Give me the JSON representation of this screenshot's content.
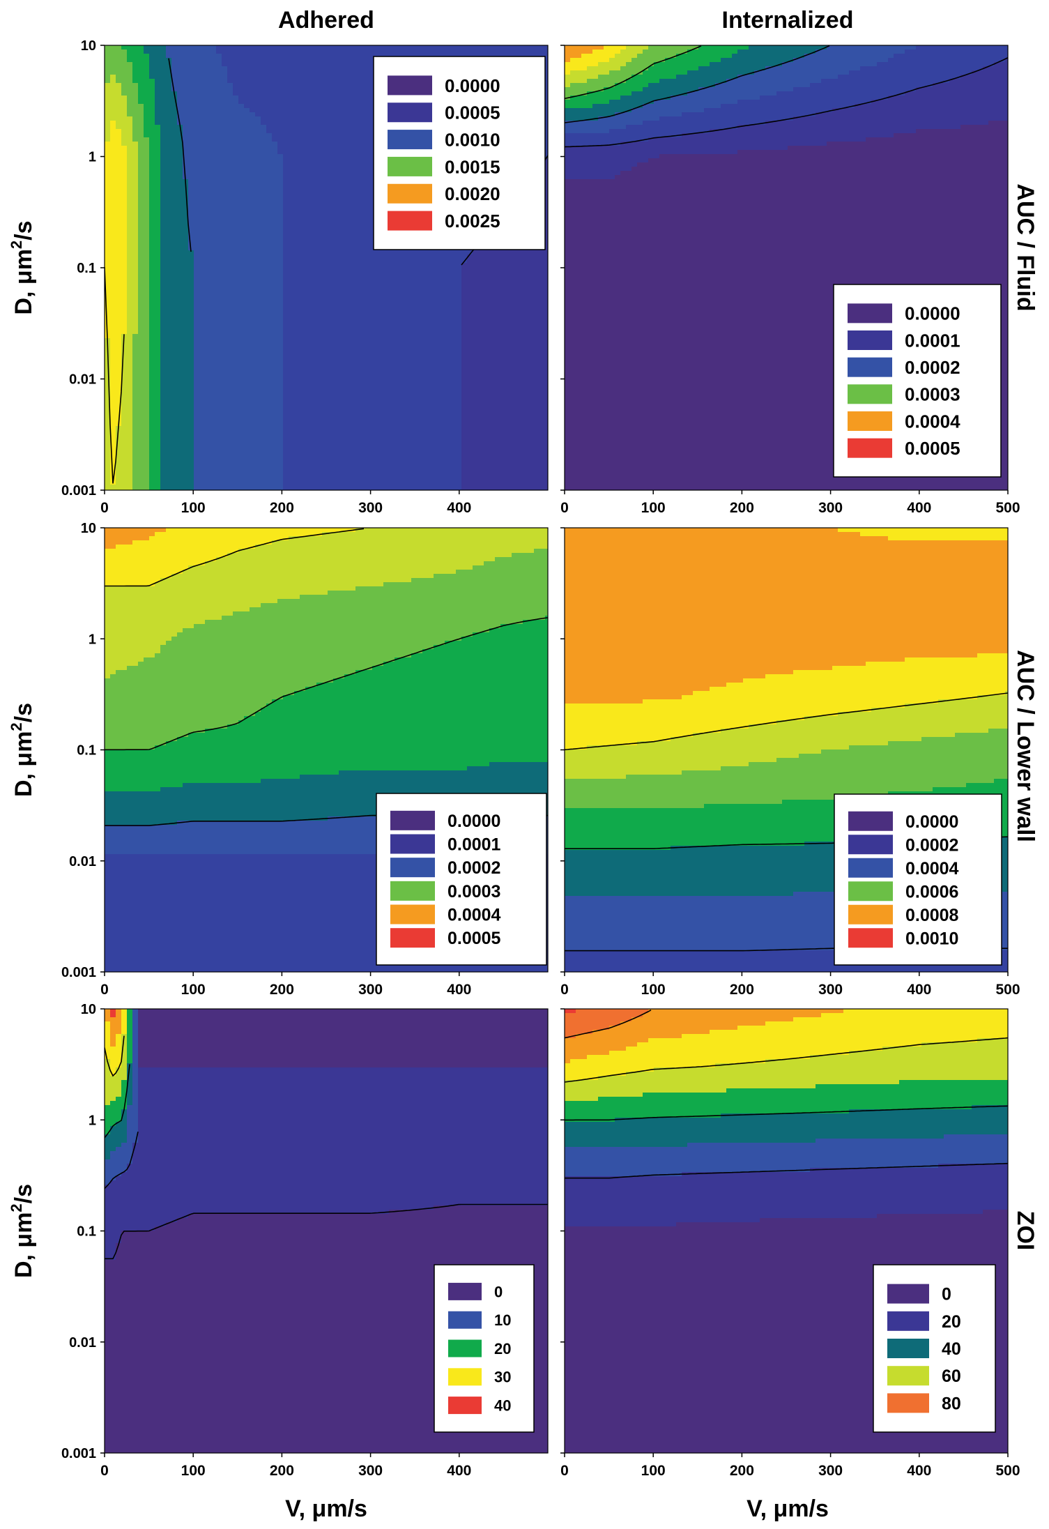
{
  "column_titles": [
    "Adhered",
    "Internalized"
  ],
  "row_titles": [
    "AUC / Fluid",
    "AUC / Lower wall",
    "ZOI"
  ],
  "y_axis_label": {
    "prefix": "D, ",
    "unit_base": "μm",
    "superscript": "2",
    "suffix": "/s"
  },
  "x_axis_label": "V, μm/s",
  "colors": {
    "purple": "#4b2f7f",
    "indigo": "#3b3795",
    "blue": "#3452a6",
    "teal": "#0e6b78",
    "green": "#10aa4b",
    "lightgreen": "#6bbf46",
    "yellowgreen": "#c6dc2e",
    "yellow": "#f9e81b",
    "orange": "#f59b20",
    "darkorange": "#f07030",
    "red": "#ea3b34"
  },
  "chart_data": [
    {
      "type": "heatmap",
      "panel": "Adhered - AUC / Fluid",
      "x": [
        0,
        10,
        20,
        30,
        40,
        50,
        60,
        80,
        100,
        150,
        200,
        300,
        400,
        500
      ],
      "y": [
        0.001,
        0.01,
        0.1,
        1,
        10
      ],
      "xlim": [
        0,
        500
      ],
      "ylim": [
        0.001,
        10
      ],
      "yscale": "log",
      "x_ticks": [
        0,
        100,
        200,
        300,
        400
      ],
      "y_ticks": [
        "0.001",
        "0.01",
        "0.1",
        "1",
        "10"
      ],
      "z": [
        [
          0.0019,
          0.002,
          0.0019,
          0.0018,
          0.0016,
          0.0015,
          0.0013,
          0.0011,
          0.001,
          0.0008,
          0.00075,
          0.0007,
          0.0005,
          0.0004
        ],
        [
          0.0019,
          0.0021,
          0.002,
          0.0018,
          0.0016,
          0.0015,
          0.0013,
          0.0011,
          0.001,
          0.0008,
          0.00075,
          0.0007,
          0.0005,
          0.0004
        ],
        [
          0.002,
          0.0022,
          0.0021,
          0.0019,
          0.0017,
          0.0015,
          0.0013,
          0.0011,
          0.001,
          0.0008,
          0.00075,
          0.0007,
          0.0005,
          0.0004
        ],
        [
          0.002,
          0.0022,
          0.0021,
          0.0019,
          0.0017,
          0.0015,
          0.0013,
          0.0011,
          0.0009,
          0.0008,
          0.00075,
          0.0007,
          0.0006,
          0.0005
        ],
        [
          0.0016,
          0.0016,
          0.0015,
          0.0014,
          0.0013,
          0.0012,
          0.0011,
          0.0009,
          0.0008,
          0.0007,
          0.0007,
          0.0007,
          0.0006,
          0.0005
        ]
      ],
      "levels": [
        0.0,
        0.00025,
        0.0005,
        0.00075,
        0.001,
        0.00125,
        0.0015,
        0.00175,
        0.002,
        0.00225,
        0.0025
      ],
      "level_colors": [
        "#4b2f7f",
        "#3b3795",
        "#3542a0",
        "#3452a6",
        "#0e6b78",
        "#10aa4b",
        "#6bbf46",
        "#c6dc2e",
        "#f9e81b",
        "#f59b20",
        "#ea3b34"
      ],
      "contour_lines": [
        0.0005,
        0.001,
        0.002
      ],
      "legend": {
        "entries": [
          "0.0000",
          "0.0005",
          "0.0010",
          "0.0015",
          "0.0020",
          "0.0025"
        ],
        "colors": [
          "#4b2f7f",
          "#3b3795",
          "#3452a6",
          "#6bbf46",
          "#f59b20",
          "#ea3b34"
        ],
        "position": "top-right"
      }
    },
    {
      "type": "heatmap",
      "panel": "Internalized - AUC / Fluid",
      "x": [
        0,
        50,
        100,
        200,
        300,
        400,
        500
      ],
      "y": [
        0.001,
        0.01,
        0.1,
        1,
        10
      ],
      "xlim": [
        0,
        500
      ],
      "ylim": [
        0.001,
        10
      ],
      "yscale": "log",
      "x_ticks": [
        0,
        100,
        200,
        300,
        400,
        500
      ],
      "y_ticks": [
        "0.001",
        "0.01",
        "0.1",
        "1",
        "10"
      ],
      "z": [
        [
          1e-05,
          1e-05,
          1e-05,
          1e-05,
          1e-05,
          1e-05,
          1e-05
        ],
        [
          1e-05,
          1e-05,
          1e-05,
          1e-05,
          1e-05,
          1e-05,
          1e-05
        ],
        [
          1e-05,
          1e-05,
          1e-05,
          1e-05,
          1e-05,
          1e-05,
          1e-05
        ],
        [
          6e-05,
          6e-05,
          5e-05,
          4e-05,
          3e-05,
          2e-05,
          2e-05
        ],
        [
          0.00052,
          0.00045,
          0.00035,
          0.00026,
          0.0002,
          0.00015,
          0.00011
        ]
      ],
      "levels": [
        0.0,
        5e-05,
        0.0001,
        0.00015,
        0.0002,
        0.00025,
        0.0003,
        0.00035,
        0.0004,
        0.00045,
        0.0005
      ],
      "level_colors": [
        "#4b2f7f",
        "#3b3795",
        "#3542a0",
        "#3452a6",
        "#0e6b78",
        "#10aa4b",
        "#6bbf46",
        "#c6dc2e",
        "#f9e81b",
        "#f59b20",
        "#ea3b34"
      ],
      "contour_lines": [
        0.0001,
        0.0002,
        0.0003
      ],
      "legend": {
        "entries": [
          "0.0000",
          "0.0001",
          "0.0002",
          "0.0003",
          "0.0004",
          "0.0005"
        ],
        "colors": [
          "#4b2f7f",
          "#3b3795",
          "#3452a6",
          "#6bbf46",
          "#f59b20",
          "#ea3b34"
        ],
        "position": "bottom-right"
      }
    },
    {
      "type": "heatmap",
      "panel": "Adhered - AUC / Lower wall",
      "x": [
        0,
        50,
        100,
        150,
        200,
        300,
        400,
        450,
        500
      ],
      "y": [
        0.001,
        0.003,
        0.01,
        0.03,
        0.1,
        0.3,
        1,
        3,
        10
      ],
      "xlim": [
        0,
        500
      ],
      "ylim": [
        0.001,
        10
      ],
      "yscale": "log",
      "x_ticks": [
        0,
        100,
        200,
        300,
        400
      ],
      "y_ticks": [
        "0.001",
        "0.01",
        "0.1",
        "1",
        "10"
      ],
      "z": [
        [
          0.00011,
          0.00011,
          0.00011,
          0.00011,
          0.00011,
          0.00011,
          0.00011,
          0.00011,
          0.00011
        ],
        [
          0.00012,
          0.00012,
          0.00012,
          0.00012,
          0.00012,
          0.00012,
          0.00012,
          0.00012,
          0.00012
        ],
        [
          0.00014,
          0.00014,
          0.00014,
          0.00014,
          0.00014,
          0.00014,
          0.00014,
          0.00014,
          0.00014
        ],
        [
          0.00023,
          0.00023,
          0.00022,
          0.00022,
          0.00022,
          0.00021,
          0.00021,
          0.00021,
          0.00021
        ],
        [
          0.0003,
          0.0003,
          0.00029,
          0.00029,
          0.00028,
          0.00027,
          0.00027,
          0.00026,
          0.00026
        ],
        [
          0.00034,
          0.00033,
          0.00032,
          0.00031,
          0.0003,
          0.00029,
          0.00028,
          0.00027,
          0.00027
        ],
        [
          0.00037,
          0.00036,
          0.00034,
          0.00033,
          0.00032,
          0.00031,
          0.0003,
          0.00029,
          0.00028
        ],
        [
          0.0004,
          0.0004,
          0.00038,
          0.00037,
          0.00036,
          0.00035,
          0.00034,
          0.00033,
          0.00033
        ],
        [
          0.00048,
          0.00046,
          0.00044,
          0.00042,
          0.00041,
          0.0004,
          0.00038,
          0.00037,
          0.00036
        ]
      ],
      "levels": [
        0.0,
        5e-05,
        0.0001,
        0.00015,
        0.0002,
        0.00025,
        0.0003,
        0.00035,
        0.0004,
        0.00045,
        0.0005
      ],
      "level_colors": [
        "#4b2f7f",
        "#3b3795",
        "#3542a0",
        "#3452a6",
        "#0e6b78",
        "#10aa4b",
        "#6bbf46",
        "#c6dc2e",
        "#f9e81b",
        "#f59b20",
        "#ea3b34"
      ],
      "contour_lines": [
        0.0002,
        0.0003,
        0.0004
      ],
      "legend": {
        "entries": [
          "0.0000",
          "0.0001",
          "0.0002",
          "0.0003",
          "0.0004",
          "0.0005"
        ],
        "colors": [
          "#4b2f7f",
          "#3b3795",
          "#3452a6",
          "#6bbf46",
          "#f59b20",
          "#ea3b34"
        ],
        "position": "bottom-right"
      }
    },
    {
      "type": "heatmap",
      "panel": "Internalized - AUC / Lower wall",
      "x": [
        0,
        100,
        200,
        300,
        400,
        500
      ],
      "y": [
        0.001,
        0.003,
        0.01,
        0.03,
        0.1,
        0.3,
        1,
        3,
        10
      ],
      "xlim": [
        0,
        500
      ],
      "ylim": [
        0.001,
        10
      ],
      "yscale": "log",
      "x_ticks": [
        0,
        100,
        200,
        300,
        400,
        500
      ],
      "y_ticks": [
        "0.001",
        "0.01",
        "0.1",
        "1",
        "10"
      ],
      "z": [
        [
          0.00026,
          0.00026,
          0.00026,
          0.00026,
          0.00026,
          0.00026
        ],
        [
          0.00036,
          0.00036,
          0.00036,
          0.00035,
          0.00035,
          0.00035
        ],
        [
          0.00047,
          0.00047,
          0.00046,
          0.00046,
          0.00045,
          0.00045
        ],
        [
          0.0006,
          0.0006,
          0.00059,
          0.00058,
          0.00057,
          0.00056
        ],
        [
          0.0008,
          0.00078,
          0.00074,
          0.0007,
          0.00067,
          0.00064
        ],
        [
          0.00092,
          0.00091,
          0.00088,
          0.00085,
          0.00082,
          0.00079
        ],
        [
          0.00096,
          0.00096,
          0.00095,
          0.00095,
          0.00094,
          0.00094
        ],
        [
          0.00093,
          0.00093,
          0.00093,
          0.00093,
          0.00093,
          0.00093
        ],
        [
          0.0009,
          0.0009,
          0.0009,
          0.0009,
          0.00089,
          0.00089
        ]
      ],
      "levels": [
        0.0,
        0.0001,
        0.0002,
        0.0003,
        0.0004,
        0.0005,
        0.0006,
        0.0007,
        0.0008,
        0.0009,
        0.001
      ],
      "level_colors": [
        "#4b2f7f",
        "#3b3795",
        "#3542a0",
        "#3452a6",
        "#0e6b78",
        "#10aa4b",
        "#6bbf46",
        "#c6dc2e",
        "#f9e81b",
        "#f59b20",
        "#ea3b34"
      ],
      "contour_lines": [
        0.0003,
        0.0005,
        0.0008
      ],
      "legend": {
        "entries": [
          "0.0000",
          "0.0002",
          "0.0004",
          "0.0006",
          "0.0008",
          "0.0010"
        ],
        "colors": [
          "#4b2f7f",
          "#3b3795",
          "#3452a6",
          "#6bbf46",
          "#f59b20",
          "#ea3b34"
        ],
        "position": "bottom-right"
      }
    },
    {
      "type": "heatmap",
      "panel": "Adhered - ZOI",
      "x": [
        0,
        10,
        20,
        30,
        40,
        50,
        100,
        200,
        300,
        400,
        500
      ],
      "y": [
        0.001,
        0.01,
        0.1,
        0.3,
        1,
        3,
        10
      ],
      "xlim": [
        0,
        500
      ],
      "ylim": [
        0.001,
        10
      ],
      "yscale": "log",
      "x_ticks": [
        0,
        100,
        200,
        300,
        400
      ],
      "y_ticks": [
        "0.001",
        "0.01",
        "0.1",
        "1",
        "10"
      ],
      "z": [
        [
          1,
          1,
          1,
          1,
          1,
          1,
          1,
          1,
          1,
          1,
          1
        ],
        [
          2,
          2,
          2,
          2,
          2,
          2,
          2,
          2,
          2,
          2,
          2
        ],
        [
          6,
          6,
          5,
          5,
          5,
          5,
          4,
          4,
          4,
          4,
          4
        ],
        [
          11,
          10,
          9,
          9,
          8,
          8,
          7,
          7,
          7,
          6,
          6
        ],
        [
          24,
          21,
          20,
          12,
          10,
          9,
          8,
          8,
          7,
          7,
          7
        ],
        [
          28,
          32,
          29,
          18,
          5,
          5,
          5,
          5,
          5,
          5,
          5
        ],
        [
          34,
          42,
          36,
          20,
          4,
          3,
          3,
          3,
          3,
          3,
          3
        ]
      ],
      "levels": [
        0,
        5,
        10,
        15,
        20,
        25,
        30,
        35,
        40,
        45,
        50
      ],
      "level_colors": [
        "#4b2f7f",
        "#3b3795",
        "#3452a6",
        "#0e6b78",
        "#10aa4b",
        "#c6dc2e",
        "#f9e81b",
        "#f59b20",
        "#ea3b34",
        "#ea3b34"
      ],
      "contour_lines": [
        5,
        10,
        20,
        30
      ],
      "legend": {
        "entries": [
          "0",
          "10",
          "20",
          "30",
          "40"
        ],
        "colors": [
          "#4b2f7f",
          "#3452a6",
          "#10aa4b",
          "#f9e81b",
          "#ea3b34"
        ],
        "position": "bottom-right"
      }
    },
    {
      "type": "heatmap",
      "panel": "Internalized - ZOI",
      "x": [
        0,
        50,
        100,
        200,
        300,
        400,
        500
      ],
      "y": [
        0.001,
        0.01,
        0.1,
        0.3,
        1,
        3,
        10
      ],
      "xlim": [
        0,
        500
      ],
      "ylim": [
        0.001,
        10
      ],
      "yscale": "log",
      "x_ticks": [
        0,
        100,
        200,
        300,
        400,
        500
      ],
      "y_ticks": [
        "0.001",
        "0.01",
        "0.1",
        "1",
        "10"
      ],
      "z": [
        [
          2,
          2,
          2,
          2,
          2,
          2,
          2
        ],
        [
          4,
          4,
          4,
          4,
          4,
          4,
          4
        ],
        [
          9,
          9,
          9,
          8,
          8,
          7,
          7
        ],
        [
          20,
          20,
          19,
          18,
          17,
          16,
          15
        ],
        [
          40,
          40,
          39,
          38,
          37,
          36,
          35
        ],
        [
          68,
          64,
          61,
          59,
          57,
          55,
          54
        ],
        [
          92,
          88,
          80,
          75,
          71,
          68,
          66
        ]
      ],
      "levels": [
        0,
        10,
        20,
        30,
        40,
        50,
        60,
        70,
        80,
        90,
        100
      ],
      "level_colors": [
        "#4b2f7f",
        "#3b3795",
        "#3452a6",
        "#0e6b78",
        "#10aa4b",
        "#c6dc2e",
        "#f9e81b",
        "#f59b20",
        "#f07030",
        "#ea3b34"
      ],
      "contour_lines": [
        20,
        40,
        60,
        80
      ],
      "legend": {
        "entries": [
          "0",
          "20",
          "40",
          "60",
          "80"
        ],
        "colors": [
          "#4b2f7f",
          "#3b3795",
          "#0e6b78",
          "#c6dc2e",
          "#f07030"
        ],
        "position": "bottom-right"
      }
    }
  ]
}
